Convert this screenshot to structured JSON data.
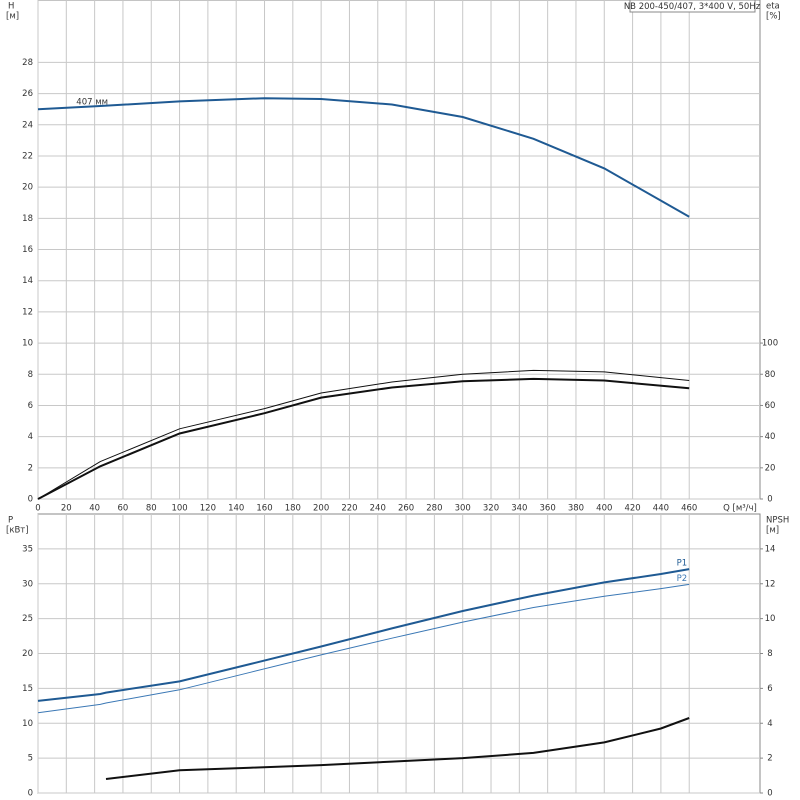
{
  "chart_data": [
    {
      "type": "line",
      "title": "NB 200-450/407, 3*400 V, 50Hz",
      "ylabel": "H",
      "yunit": "[м]",
      "y2label": "eta",
      "y2unit": "[%]",
      "xlabel": "Q [м³/ч]",
      "annotation": "407 мм",
      "xlim": [
        0,
        510
      ],
      "xticks": [
        0,
        20,
        40,
        60,
        80,
        100,
        120,
        140,
        160,
        180,
        200,
        220,
        240,
        260,
        280,
        300,
        320,
        340,
        360,
        380,
        400,
        420,
        440,
        460
      ],
      "xtick_labels": true,
      "ylim": [
        0,
        32
      ],
      "yticks": [
        0,
        2,
        4,
        6,
        8,
        10,
        12,
        14,
        16,
        18,
        20,
        22,
        24,
        26,
        28
      ],
      "y2lim": [
        0,
        320
      ],
      "y2ticks": [
        0,
        20,
        40,
        60,
        80,
        100
      ],
      "grid": true,
      "x": [
        0,
        44,
        100,
        160,
        200,
        250,
        300,
        350,
        400,
        460
      ],
      "series": [
        {
          "color": "#1f5a93",
          "style": "thick",
          "values": [
            25.0,
            25.2,
            25.5,
            25.7,
            25.65,
            25.3,
            24.5,
            23.1,
            21.2,
            18.1
          ]
        },
        {
          "color": "#111111",
          "style": "thin",
          "axis": "y2",
          "values": [
            0,
            24,
            45,
            58,
            68,
            75,
            80,
            82.5,
            81.5,
            76
          ]
        },
        {
          "color": "#111111",
          "style": "thick",
          "axis": "y2",
          "values": [
            0,
            21,
            42,
            55,
            65,
            71.5,
            75.5,
            77,
            76,
            71
          ]
        }
      ]
    },
    {
      "type": "line",
      "ylabel": "P",
      "yunit": "[кВт]",
      "y2label": "NPSH",
      "y2unit": "[м]",
      "xlim": [
        0,
        510
      ],
      "xticks": [
        0,
        20,
        40,
        60,
        80,
        100,
        120,
        140,
        160,
        180,
        200,
        220,
        240,
        260,
        280,
        300,
        320,
        340,
        360,
        380,
        400,
        420,
        440,
        460
      ],
      "xtick_labels": false,
      "ylim": [
        0,
        40
      ],
      "yticks": [
        0,
        5,
        10,
        15,
        20,
        25,
        30,
        35
      ],
      "y2lim": [
        0,
        16
      ],
      "y2ticks": [
        0,
        2,
        4,
        6,
        8,
        10,
        12,
        14
      ],
      "grid": true,
      "x": [
        0,
        44,
        48,
        100,
        150,
        200,
        250,
        300,
        350,
        400,
        440,
        460
      ],
      "series": [
        {
          "name": "P1",
          "color": "#1f5a93",
          "style": "thick",
          "values": [
            13.2,
            14.2,
            14.4,
            16.0,
            18.5,
            21.0,
            23.6,
            26.1,
            28.3,
            30.2,
            31.4,
            32.1
          ]
        },
        {
          "name": "P2",
          "color": "#3b78b5",
          "style": "thin",
          "values": [
            11.5,
            12.7,
            12.9,
            14.8,
            17.3,
            19.8,
            22.2,
            24.5,
            26.6,
            28.2,
            29.3,
            29.9
          ]
        },
        {
          "color": "#111111",
          "style": "thick",
          "axis": "y2",
          "values": [
            null,
            null,
            0.8,
            1.3,
            1.45,
            1.6,
            1.8,
            2.0,
            2.3,
            2.9,
            3.7,
            4.3
          ]
        }
      ]
    }
  ]
}
